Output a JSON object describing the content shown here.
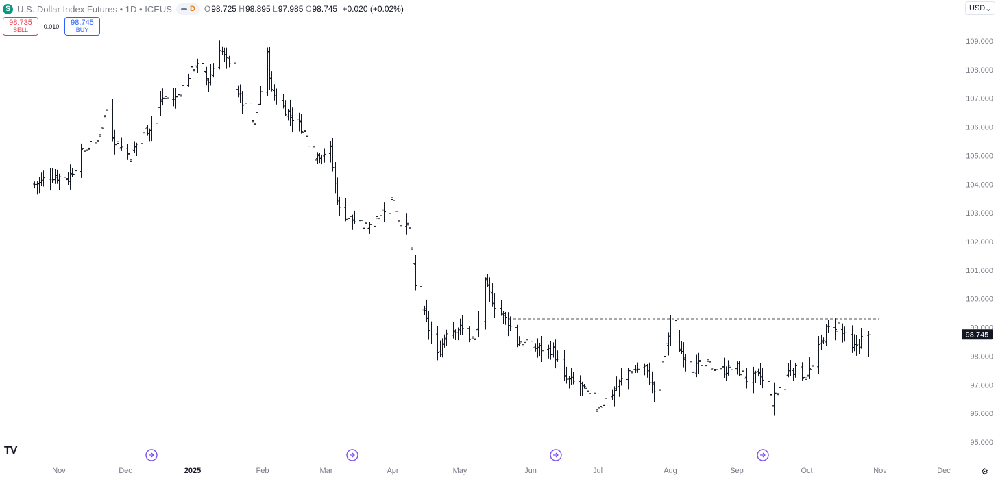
{
  "header": {
    "symbol_badge": "$",
    "title": "U.S. Dollar Index Futures",
    "interval": "1D",
    "exchange": "ICEUS",
    "pill_letter": "D",
    "ohlc": {
      "o_label": "O",
      "o": "98.725",
      "h_label": "H",
      "h": "98.895",
      "l_label": "L",
      "l": "97.985",
      "c_label": "C",
      "c": "98.745",
      "change": "+0.020 (+0.02%)"
    }
  },
  "trade": {
    "sell_price": "98.735",
    "sell_label": "SELL",
    "spread": "0.010",
    "buy_price": "98.745",
    "buy_label": "BUY"
  },
  "currency": {
    "label": "USD",
    "icon": "chevron-down-icon"
  },
  "logo": "TV",
  "colors": {
    "bar": "#131722",
    "price_tag": "#131722",
    "event": "#7b4ff0",
    "axis_text": "#787b86"
  },
  "chart_data": {
    "type": "ohlc",
    "ylim": [
      94.6,
      109.6
    ],
    "y_ticks": [
      "109.000",
      "108.000",
      "107.000",
      "106.000",
      "105.000",
      "104.000",
      "103.000",
      "102.000",
      "101.000",
      "100.000",
      "99.000",
      "98.000",
      "97.000",
      "96.000",
      "95.000"
    ],
    "x_ticks": [
      {
        "label": "Nov",
        "bold": false
      },
      {
        "label": "Dec",
        "bold": false
      },
      {
        "label": "2025",
        "bold": true
      },
      {
        "label": "Feb",
        "bold": false
      },
      {
        "label": "Mar",
        "bold": false
      },
      {
        "label": "Apr",
        "bold": false
      },
      {
        "label": "May",
        "bold": false
      },
      {
        "label": "Jun",
        "bold": false
      },
      {
        "label": "Jul",
        "bold": false
      },
      {
        "label": "Aug",
        "bold": false
      },
      {
        "label": "Sep",
        "bold": false
      },
      {
        "label": "Oct",
        "bold": false
      },
      {
        "label": "Nov",
        "bold": false
      },
      {
        "label": "Dec",
        "bold": false
      }
    ],
    "last_price": "98.745",
    "resistance_level": 99.3,
    "event_markers": 4,
    "close_path": [
      [
        "2024-10-21",
        104.0
      ],
      [
        "2024-10-28",
        104.3
      ],
      [
        "2024-11-05",
        104.2
      ],
      [
        "2024-11-12",
        105.2
      ],
      [
        "2024-11-18",
        105.5
      ],
      [
        "2024-11-22",
        106.6
      ],
      [
        "2024-11-26",
        105.5
      ],
      [
        "2024-12-03",
        105.0
      ],
      [
        "2024-12-09",
        105.8
      ],
      [
        "2024-12-12",
        106.0
      ],
      [
        "2024-12-18",
        107.0
      ],
      [
        "2024-12-24",
        107.0
      ],
      [
        "2025-01-02",
        108.2
      ],
      [
        "2025-01-08",
        107.6
      ],
      [
        "2025-01-13",
        108.8
      ],
      [
        "2025-01-17",
        108.1
      ],
      [
        "2025-01-22",
        107.0
      ],
      [
        "2025-01-28",
        106.0
      ],
      [
        "2025-02-03",
        108.5
      ],
      [
        "2025-02-05",
        107.2
      ],
      [
        "2025-02-12",
        106.5
      ],
      [
        "2025-02-18",
        106.0
      ],
      [
        "2025-02-24",
        105.0
      ],
      [
        "2025-03-03",
        105.2
      ],
      [
        "2025-03-05",
        104.0
      ],
      [
        "2025-03-07",
        103.1
      ],
      [
        "2025-03-12",
        102.8
      ],
      [
        "2025-03-19",
        102.5
      ],
      [
        "2025-03-26",
        103.0
      ],
      [
        "2025-04-01",
        103.5
      ],
      [
        "2025-04-03",
        102.8
      ],
      [
        "2025-04-08",
        102.4
      ],
      [
        "2025-04-11",
        100.4
      ],
      [
        "2025-04-21",
        98.0
      ],
      [
        "2025-04-25",
        98.9
      ],
      [
        "2025-05-01",
        99.0
      ],
      [
        "2025-05-07",
        98.5
      ],
      [
        "2025-05-12",
        100.5
      ],
      [
        "2025-05-16",
        99.8
      ],
      [
        "2025-05-22",
        99.2
      ],
      [
        "2025-05-26",
        98.5
      ],
      [
        "2025-06-03",
        98.3
      ],
      [
        "2025-06-11",
        98.2
      ],
      [
        "2025-06-16",
        97.2
      ],
      [
        "2025-06-23",
        97.0
      ],
      [
        "2025-06-30",
        96.2
      ],
      [
        "2025-07-07",
        96.7
      ],
      [
        "2025-07-14",
        97.5
      ],
      [
        "2025-07-21",
        97.6
      ],
      [
        "2025-07-25",
        96.8
      ],
      [
        "2025-07-30",
        98.3
      ],
      [
        "2025-08-01",
        99.2
      ],
      [
        "2025-08-04",
        98.4
      ],
      [
        "2025-08-11",
        97.6
      ],
      [
        "2025-08-18",
        97.7
      ],
      [
        "2025-08-25",
        97.5
      ],
      [
        "2025-09-01",
        97.6
      ],
      [
        "2025-09-05",
        97.2
      ],
      [
        "2025-09-11",
        97.3
      ],
      [
        "2025-09-16",
        96.4
      ],
      [
        "2025-09-19",
        96.9
      ],
      [
        "2025-09-24",
        97.6
      ],
      [
        "2025-09-30",
        97.3
      ],
      [
        "2025-10-03",
        97.6
      ],
      [
        "2025-10-09",
        98.9
      ],
      [
        "2025-10-14",
        99.1
      ],
      [
        "2025-10-20",
        98.2
      ],
      [
        "2025-10-24",
        98.6
      ],
      [
        "2025-10-27",
        98.745
      ]
    ]
  }
}
